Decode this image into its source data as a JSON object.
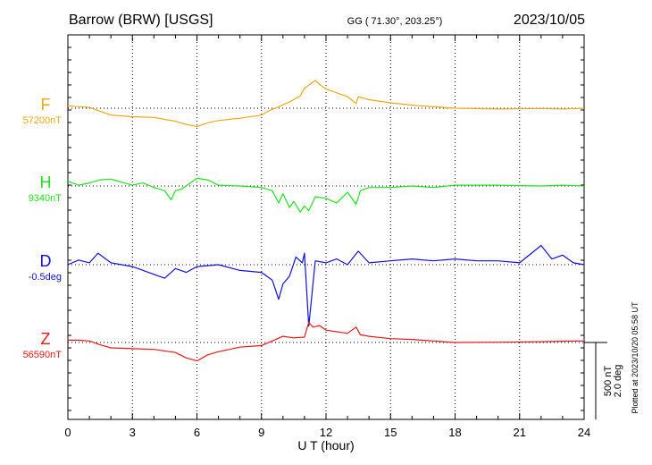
{
  "header": {
    "station": "Barrow (BRW)  [USGS]",
    "coords": "GG ( 71.30°, 203.25°)",
    "date": "2023/10/05"
  },
  "footer_note": "Plotted at 2023/10/20 05:58 UT",
  "scale_bar": {
    "line1": "500 nT",
    "line2": "2.0 deg",
    "nT_per_bar": 500
  },
  "chart_data": {
    "type": "line",
    "xlabel": "U T (hour)",
    "xlim": [
      0,
      24
    ],
    "xticks": [
      "0",
      "3",
      "6",
      "9",
      "12",
      "15",
      "18",
      "21",
      "24"
    ],
    "grid": true,
    "series": [
      {
        "name": "F",
        "baseline_label": "57200nT",
        "baseline": 57200,
        "color": "#f0a818",
        "x": [
          0,
          0.5,
          1,
          1.5,
          2,
          3,
          4,
          5,
          5.5,
          6,
          6.5,
          7,
          8,
          9,
          9.3,
          9.8,
          10.3,
          10.8,
          11,
          11.2,
          11.5,
          11.7,
          12,
          12.5,
          13,
          13.4,
          13.5,
          14,
          15,
          16,
          18,
          20,
          22,
          23,
          24
        ],
        "y": [
          57215,
          57210,
          57205,
          57180,
          57155,
          57145,
          57140,
          57115,
          57095,
          57080,
          57105,
          57120,
          57135,
          57155,
          57180,
          57210,
          57240,
          57280,
          57330,
          57350,
          57380,
          57355,
          57325,
          57300,
          57275,
          57230,
          57275,
          57255,
          57235,
          57220,
          57200,
          57195,
          57198,
          57195,
          57200
        ]
      },
      {
        "name": "H",
        "baseline_label": "9340nT",
        "baseline": 9340,
        "color": "#22e022",
        "x": [
          0,
          0.5,
          1,
          1.5,
          2,
          3,
          3.5,
          4,
          4.5,
          4.8,
          5,
          5.3,
          6,
          6.5,
          7,
          8,
          9,
          9.5,
          9.8,
          10,
          10.3,
          10.5,
          10.8,
          11,
          11.2,
          11.5,
          12,
          12.5,
          13,
          13.4,
          13.6,
          14,
          15,
          16,
          17,
          18,
          20,
          22,
          23,
          24
        ],
        "y": [
          9370,
          9345,
          9360,
          9380,
          9385,
          9345,
          9360,
          9330,
          9310,
          9250,
          9310,
          9320,
          9390,
          9380,
          9345,
          9340,
          9330,
          9310,
          9230,
          9290,
          9200,
          9240,
          9170,
          9210,
          9180,
          9270,
          9260,
          9230,
          9300,
          9220,
          9310,
          9330,
          9330,
          9340,
          9330,
          9345,
          9345,
          9340,
          9345,
          9340
        ]
      },
      {
        "name": "D",
        "baseline_label": "-0.5deg",
        "baseline": -0.5,
        "color": "#1010d8",
        "x": [
          0,
          0.5,
          1,
          1.4,
          2,
          2.5,
          3,
          4,
          4.5,
          5,
          5.5,
          6,
          7,
          8,
          9,
          9.5,
          9.8,
          10,
          10.3,
          10.6,
          10.9,
          11,
          11.2,
          11.5,
          12,
          12.5,
          13,
          13.5,
          14,
          15,
          16,
          17,
          18,
          19,
          20,
          21,
          22,
          22.5,
          23,
          23.5,
          24
        ],
        "y": [
          -0.5,
          -0.38,
          -0.45,
          -0.2,
          -0.45,
          -0.5,
          -0.55,
          -0.75,
          -0.85,
          -0.6,
          -0.7,
          -0.55,
          -0.5,
          -0.65,
          -0.7,
          -0.9,
          -1.4,
          -1.0,
          -0.8,
          -0.3,
          -0.45,
          -0.2,
          -2.1,
          -0.4,
          -0.45,
          -0.35,
          -0.5,
          -0.15,
          -0.45,
          -0.4,
          -0.35,
          -0.4,
          -0.35,
          -0.4,
          -0.4,
          -0.45,
          0.0,
          -0.35,
          -0.25,
          -0.45,
          -0.5
        ]
      },
      {
        "name": "Z",
        "baseline_label": "56590nT",
        "baseline": 56590,
        "color": "#e81818",
        "x": [
          0,
          0.5,
          1,
          1.5,
          2,
          3,
          4,
          5,
          5.5,
          6,
          6.5,
          7,
          8,
          9,
          9.5,
          10,
          10.5,
          11,
          11.2,
          11.4,
          11.7,
          12,
          12.5,
          13,
          13.4,
          13.6,
          14,
          15,
          16,
          18,
          20,
          22,
          23,
          24
        ],
        "y": [
          56605,
          56605,
          56600,
          56575,
          56555,
          56550,
          56545,
          56525,
          56490,
          56470,
          56510,
          56530,
          56560,
          56570,
          56600,
          56630,
          56620,
          56625,
          56720,
          56690,
          56700,
          56670,
          56660,
          56650,
          56690,
          56640,
          56630,
          56615,
          56610,
          56590,
          56592,
          56595,
          56598,
          56600
        ]
      }
    ]
  }
}
